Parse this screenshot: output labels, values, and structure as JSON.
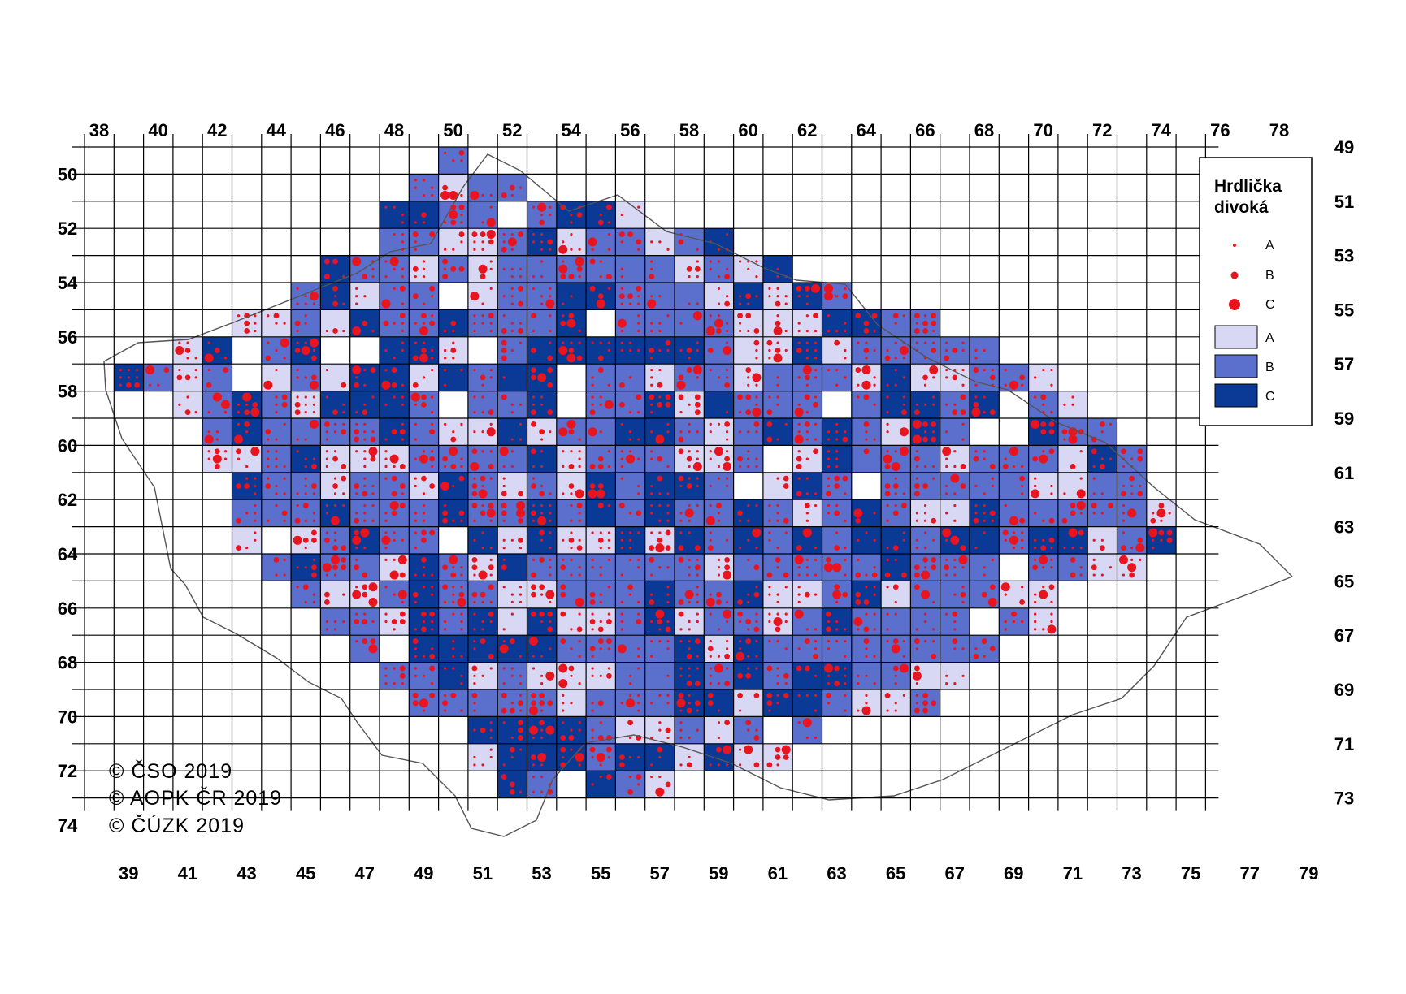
{
  "legend": {
    "title_line1": "Hrdlička",
    "title_line2": "divoká",
    "dot_labels": [
      "A",
      "B",
      "C"
    ],
    "square_labels": [
      "A",
      "B",
      "C"
    ]
  },
  "copyright": [
    "© ČSO 2019",
    "© AOPK ČR 2019",
    "© ČÚZK 2019"
  ],
  "axes": {
    "top": [
      "38",
      "40",
      "42",
      "44",
      "46",
      "48",
      "50",
      "52",
      "54",
      "56",
      "58",
      "60",
      "62",
      "64",
      "66",
      "68",
      "70",
      "72",
      "74",
      "76",
      "78"
    ],
    "bottom": [
      "39",
      "41",
      "43",
      "45",
      "47",
      "49",
      "51",
      "53",
      "55",
      "57",
      "59",
      "61",
      "63",
      "65",
      "67",
      "69",
      "71",
      "73",
      "75",
      "77",
      "79"
    ],
    "left": [
      "50",
      "52",
      "54",
      "56",
      "58",
      "60",
      "62",
      "64",
      "66",
      "68",
      "70",
      "72",
      "74"
    ],
    "right": [
      "49",
      "51",
      "53",
      "55",
      "57",
      "59",
      "61",
      "63",
      "65",
      "67",
      "69",
      "71",
      "73"
    ]
  },
  "colors": {
    "light": "#d8d8f4",
    "medium": "#5b6fcc",
    "dark": "#0a3a96",
    "dot": "#e8141e",
    "grid": "#000000",
    "border": "#777777"
  },
  "grid": {
    "col_start": 38,
    "col_end": 79,
    "row_start": 49,
    "row_end": 74
  }
}
